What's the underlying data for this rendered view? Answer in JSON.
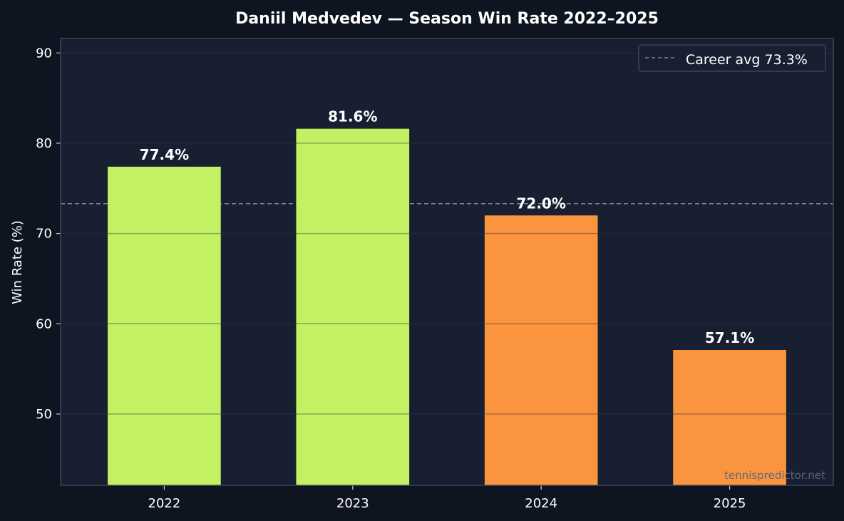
{
  "chart_data": {
    "type": "bar",
    "title": "Daniil Medvedev — Season Win Rate 2022–2025",
    "xlabel": "",
    "ylabel": "Win Rate (%)",
    "categories": [
      "2022",
      "2023",
      "2024",
      "2025"
    ],
    "values": [
      77.4,
      81.6,
      72.0,
      57.1
    ],
    "value_labels": [
      "77.4%",
      "81.6%",
      "72.0%",
      "57.1%"
    ],
    "bar_colors": [
      "#c4f063",
      "#c4f063",
      "#fb943f",
      "#fb943f"
    ],
    "ylim": [
      42.1,
      91.6
    ],
    "yticks": [
      50,
      60,
      70,
      80,
      90
    ],
    "ytick_labels": [
      "50",
      "60",
      "70",
      "80",
      "90"
    ],
    "grid": true,
    "reference_line": {
      "value": 73.3,
      "label": "Career avg 73.3%",
      "style": "dashed",
      "color": "#7a8394"
    },
    "legend_position": "top-right",
    "watermark": "tennispredictor.net",
    "colors": {
      "background": "#0e1420",
      "plot_background": "#181f30",
      "grid": "#243044",
      "axis": "#3b4557"
    }
  }
}
